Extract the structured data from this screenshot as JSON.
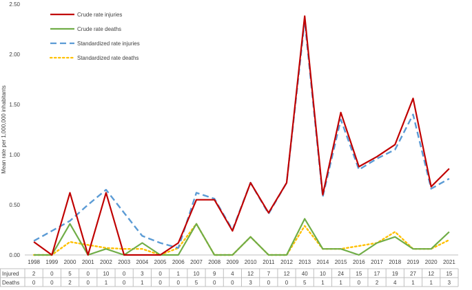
{
  "chart_data": {
    "type": "line",
    "title": "",
    "xlabel": "",
    "ylabel": "Mean rate per 1,000,000 inhabitants",
    "ylim": [
      0,
      2.5
    ],
    "yticks": [
      "0.00",
      "0.50",
      "1.00",
      "1.50",
      "2.00",
      "2.50"
    ],
    "grid": false,
    "legend_position": "top-left",
    "x": [
      "1998",
      "1999",
      "2000",
      "2001",
      "2002",
      "2003",
      "2004",
      "2005",
      "2006",
      "2007",
      "2008",
      "2009",
      "2010",
      "2011",
      "2012",
      "2013",
      "2014",
      "2015",
      "2016",
      "2017",
      "2018",
      "2019",
      "2020",
      "2021"
    ],
    "series": [
      {
        "name": "Crude rate injuries",
        "color": "#c00000",
        "style": "solid",
        "values": [
          0.13,
          0.0,
          0.62,
          0.0,
          0.62,
          0.0,
          0.0,
          0.0,
          0.12,
          0.55,
          0.55,
          0.24,
          0.72,
          0.42,
          0.72,
          2.38,
          0.6,
          1.42,
          0.88,
          0.98,
          1.1,
          1.56,
          0.68,
          0.86
        ]
      },
      {
        "name": "Crude rate deaths",
        "color": "#70ad47",
        "style": "solid",
        "values": [
          0.0,
          0.0,
          0.31,
          0.0,
          0.06,
          0.0,
          0.12,
          0.0,
          0.0,
          0.31,
          0.0,
          0.0,
          0.18,
          0.0,
          0.0,
          0.36,
          0.06,
          0.06,
          0.0,
          0.12,
          0.18,
          0.06,
          0.06,
          0.23
        ]
      },
      {
        "name": "Standardized rate injuries",
        "color": "#5b9bd5",
        "style": "dashed",
        "values": [
          0.14,
          0.24,
          0.34,
          0.5,
          0.65,
          0.42,
          0.19,
          0.12,
          0.07,
          0.62,
          0.56,
          0.25,
          0.72,
          0.41,
          0.72,
          2.33,
          0.58,
          1.35,
          0.85,
          0.96,
          1.05,
          1.4,
          0.66,
          0.76
        ]
      },
      {
        "name": "Standardized rate deaths",
        "color": "#ffc000",
        "style": "dotted",
        "values": [
          0.0,
          0.0,
          0.13,
          0.1,
          0.07,
          0.06,
          0.06,
          0.0,
          0.07,
          0.31,
          0.0,
          0.0,
          0.18,
          0.0,
          0.0,
          0.29,
          0.06,
          0.06,
          0.09,
          0.12,
          0.23,
          0.06,
          0.06,
          0.15
        ]
      }
    ],
    "table": {
      "rows": [
        {
          "label": "Injured",
          "values": [
            "2",
            "0",
            "5",
            "0",
            "10",
            "0",
            "3",
            "0",
            "1",
            "10",
            "9",
            "4",
            "12",
            "7",
            "12",
            "40",
            "10",
            "24",
            "15",
            "17",
            "19",
            "27",
            "12",
            "15"
          ]
        },
        {
          "label": "Deaths",
          "values": [
            "0",
            "0",
            "2",
            "0",
            "1",
            "0",
            "1",
            "0",
            "0",
            "5",
            "0",
            "0",
            "3",
            "0",
            "0",
            "5",
            "1",
            "1",
            "0",
            "2",
            "4",
            "1",
            "1",
            "3"
          ]
        }
      ]
    }
  }
}
